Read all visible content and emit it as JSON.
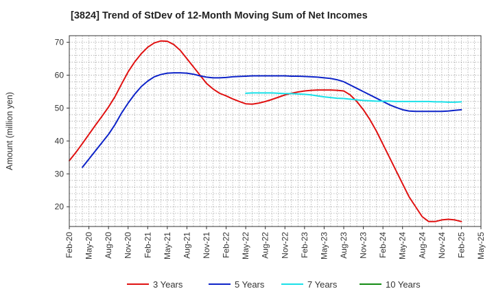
{
  "title": "[3824]  Trend of StDev of 12-Month Moving Sum of Net Incomes",
  "chart_data": {
    "type": "line",
    "title": "[3824]  Trend of StDev of 12-Month Moving Sum of Net Incomes",
    "xlabel": "",
    "ylabel": "Amount (million yen)",
    "ylim": [
      14,
      72
    ],
    "y_ticks": [
      20,
      30,
      40,
      50,
      60,
      70
    ],
    "x_tick_labels": [
      "Feb-20",
      "May-20",
      "Aug-20",
      "Nov-20",
      "Feb-21",
      "May-21",
      "Aug-21",
      "Nov-21",
      "Feb-22",
      "May-22",
      "Aug-22",
      "Nov-22",
      "Feb-23",
      "May-23",
      "Aug-23",
      "Nov-23",
      "Feb-24",
      "May-24",
      "Aug-24",
      "Nov-24",
      "Feb-25",
      "May-25"
    ],
    "x_range": [
      "Feb-20",
      "May-25"
    ],
    "grid": true,
    "legend_position": "bottom",
    "series": [
      {
        "name": "3 Years",
        "color": "#e01010",
        "x": [
          "Feb-20",
          "Mar-20",
          "Apr-20",
          "May-20",
          "Jun-20",
          "Jul-20",
          "Aug-20",
          "Sep-20",
          "Oct-20",
          "Nov-20",
          "Dec-20",
          "Jan-21",
          "Feb-21",
          "Mar-21",
          "Apr-21",
          "May-21",
          "Jun-21",
          "Jul-21",
          "Aug-21",
          "Sep-21",
          "Oct-21",
          "Nov-21",
          "Dec-21",
          "Jan-22",
          "Feb-22",
          "Mar-22",
          "Apr-22",
          "May-22",
          "Jun-22",
          "Jul-22",
          "Aug-22",
          "Sep-22",
          "Oct-22",
          "Nov-22",
          "Dec-22",
          "Jan-23",
          "Feb-23",
          "Mar-23",
          "Apr-23",
          "May-23",
          "Jun-23",
          "Jul-23",
          "Aug-23",
          "Sep-23",
          "Oct-23",
          "Nov-23",
          "Dec-23",
          "Jan-24",
          "Feb-24",
          "Mar-24",
          "Apr-24",
          "May-24",
          "Jun-24",
          "Jul-24",
          "Aug-24",
          "Sep-24",
          "Oct-24",
          "Nov-24",
          "Dec-24",
          "Jan-25",
          "Feb-25"
        ],
        "values": [
          34.0,
          36.5,
          39.2,
          42.0,
          44.8,
          47.5,
          50.3,
          53.5,
          57.3,
          61.0,
          64.0,
          66.5,
          68.5,
          69.8,
          70.4,
          70.3,
          69.3,
          67.5,
          65.0,
          62.5,
          60.0,
          57.5,
          55.8,
          54.5,
          53.7,
          52.8,
          52.0,
          51.3,
          51.2,
          51.5,
          52.0,
          52.6,
          53.3,
          54.0,
          54.5,
          54.9,
          55.2,
          55.4,
          55.5,
          55.5,
          55.5,
          55.4,
          55.2,
          54.0,
          52.0,
          49.5,
          46.5,
          43.0,
          39.0,
          35.0,
          31.0,
          27.0,
          23.0,
          20.0,
          17.0,
          15.5,
          15.5,
          16.0,
          16.2,
          16.0,
          15.5
        ]
      },
      {
        "name": "5 Years",
        "color": "#0c22c8",
        "x": [
          "Feb-20",
          "Mar-20",
          "Apr-20",
          "May-20",
          "Jun-20",
          "Jul-20",
          "Aug-20",
          "Sep-20",
          "Oct-20",
          "Nov-20",
          "Dec-20",
          "Jan-21",
          "Feb-21",
          "Mar-21",
          "Apr-21",
          "May-21",
          "Jun-21",
          "Jul-21",
          "Aug-21",
          "Sep-21",
          "Oct-21",
          "Nov-21",
          "Dec-21",
          "Jan-22",
          "Feb-22",
          "Mar-22",
          "Apr-22",
          "May-22",
          "Jun-22",
          "Jul-22",
          "Aug-22",
          "Sep-22",
          "Oct-22",
          "Nov-22",
          "Dec-22",
          "Jan-23",
          "Feb-23",
          "Mar-23",
          "Apr-23",
          "May-23",
          "Jun-23",
          "Jul-23",
          "Aug-23",
          "Sep-23",
          "Oct-23",
          "Nov-23",
          "Dec-23",
          "Jan-24",
          "Feb-24",
          "Mar-24",
          "Apr-24",
          "May-24",
          "Jun-24",
          "Jul-24",
          "Aug-24",
          "Sep-24",
          "Oct-24",
          "Nov-24",
          "Dec-24",
          "Jan-25",
          "Feb-25"
        ],
        "values": [
          null,
          null,
          32.0,
          34.5,
          37.0,
          39.5,
          42.0,
          45.0,
          48.5,
          51.5,
          54.2,
          56.5,
          58.2,
          59.5,
          60.2,
          60.6,
          60.7,
          60.7,
          60.6,
          60.3,
          59.8,
          59.4,
          59.2,
          59.2,
          59.3,
          59.5,
          59.6,
          59.7,
          59.8,
          59.8,
          59.8,
          59.8,
          59.8,
          59.8,
          59.7,
          59.7,
          59.6,
          59.5,
          59.4,
          59.2,
          59.0,
          58.6,
          58.0,
          57.0,
          56.0,
          55.0,
          54.0,
          53.0,
          52.0,
          51.0,
          50.2,
          49.5,
          49.1,
          49.0,
          49.0,
          49.0,
          49.0,
          49.0,
          49.1,
          49.3,
          49.5
        ]
      },
      {
        "name": "7 Years",
        "color": "#18e0e8",
        "x": [
          "May-22",
          "Jun-22",
          "Jul-22",
          "Aug-22",
          "Sep-22",
          "Oct-22",
          "Nov-22",
          "Dec-22",
          "Jan-23",
          "Feb-23",
          "Mar-23",
          "Apr-23",
          "May-23",
          "Jun-23",
          "Jul-23",
          "Aug-23",
          "Sep-23",
          "Oct-23",
          "Nov-23",
          "Dec-23",
          "Jan-24",
          "Feb-24",
          "Mar-24",
          "Apr-24",
          "May-24",
          "Jun-24",
          "Jul-24",
          "Aug-24",
          "Sep-24",
          "Oct-24",
          "Nov-24",
          "Dec-24",
          "Jan-25",
          "Feb-25"
        ],
        "values": [
          54.5,
          54.6,
          54.6,
          54.6,
          54.6,
          54.5,
          54.4,
          54.4,
          54.3,
          54.2,
          54.0,
          53.7,
          53.4,
          53.2,
          53.0,
          52.9,
          52.7,
          52.5,
          52.3,
          52.2,
          52.1,
          52.1,
          52.1,
          52.0,
          52.0,
          52.0,
          52.0,
          52.0,
          52.0,
          51.9,
          51.9,
          51.8,
          51.8,
          51.9
        ]
      },
      {
        "name": "10 Years",
        "color": "#128a12",
        "x": [],
        "values": []
      }
    ]
  }
}
